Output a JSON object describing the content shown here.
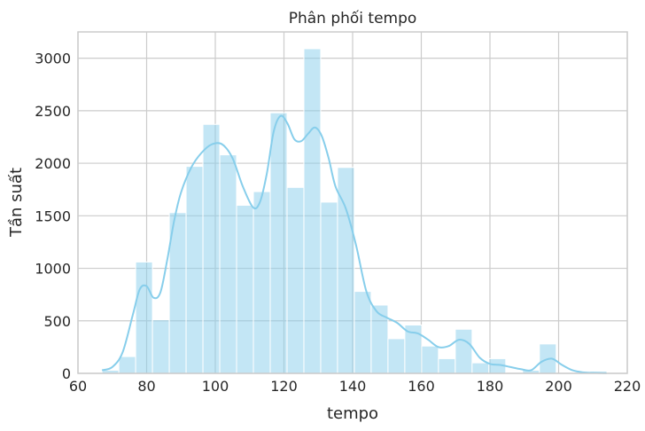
{
  "chart_data": {
    "type": "bar",
    "title": "Phân phối tempo",
    "xlabel": "tempo",
    "ylabel": "Tần suất",
    "xlim": [
      60,
      220
    ],
    "ylim": [
      0,
      3250
    ],
    "xticks": [
      "60",
      "80",
      "100",
      "120",
      "140",
      "160",
      "180",
      "200",
      "220"
    ],
    "yticks": [
      "0",
      "500",
      "1000",
      "1500",
      "2000",
      "2500",
      "3000"
    ],
    "grid": true,
    "bar_color": "#87ceeb",
    "kde_color": "#87ceeb",
    "bins": {
      "start": 67,
      "width": 4.9,
      "counts": [
        30,
        160,
        1060,
        510,
        1530,
        1970,
        2370,
        2080,
        1600,
        1730,
        2480,
        1770,
        3090,
        1630,
        1960,
        780,
        650,
        330,
        460,
        260,
        140,
        420,
        100,
        140,
        0,
        30,
        280,
        0,
        0,
        20
      ]
    },
    "kde": {
      "x": [
        67,
        70,
        73,
        76,
        78,
        80,
        82,
        84,
        86,
        88,
        90,
        93,
        96,
        99,
        102,
        105,
        108,
        111,
        113,
        115,
        117,
        119,
        121,
        123,
        125,
        127,
        129,
        131,
        133,
        135,
        138,
        141,
        144,
        147,
        150,
        153,
        156,
        159,
        162,
        165,
        168,
        171,
        174,
        177,
        180,
        183,
        186,
        189,
        192,
        195,
        198,
        201,
        204,
        207,
        210,
        214
      ],
      "y": [
        30,
        60,
        200,
        560,
        800,
        830,
        720,
        770,
        1080,
        1450,
        1720,
        1960,
        2100,
        2180,
        2180,
        2050,
        1780,
        1580,
        1630,
        1900,
        2300,
        2450,
        2380,
        2230,
        2210,
        2280,
        2340,
        2260,
        2050,
        1780,
        1570,
        1220,
        780,
        590,
        530,
        480,
        400,
        380,
        320,
        250,
        260,
        320,
        280,
        150,
        90,
        80,
        60,
        40,
        30,
        110,
        140,
        80,
        30,
        10,
        5,
        2
      ]
    }
  }
}
